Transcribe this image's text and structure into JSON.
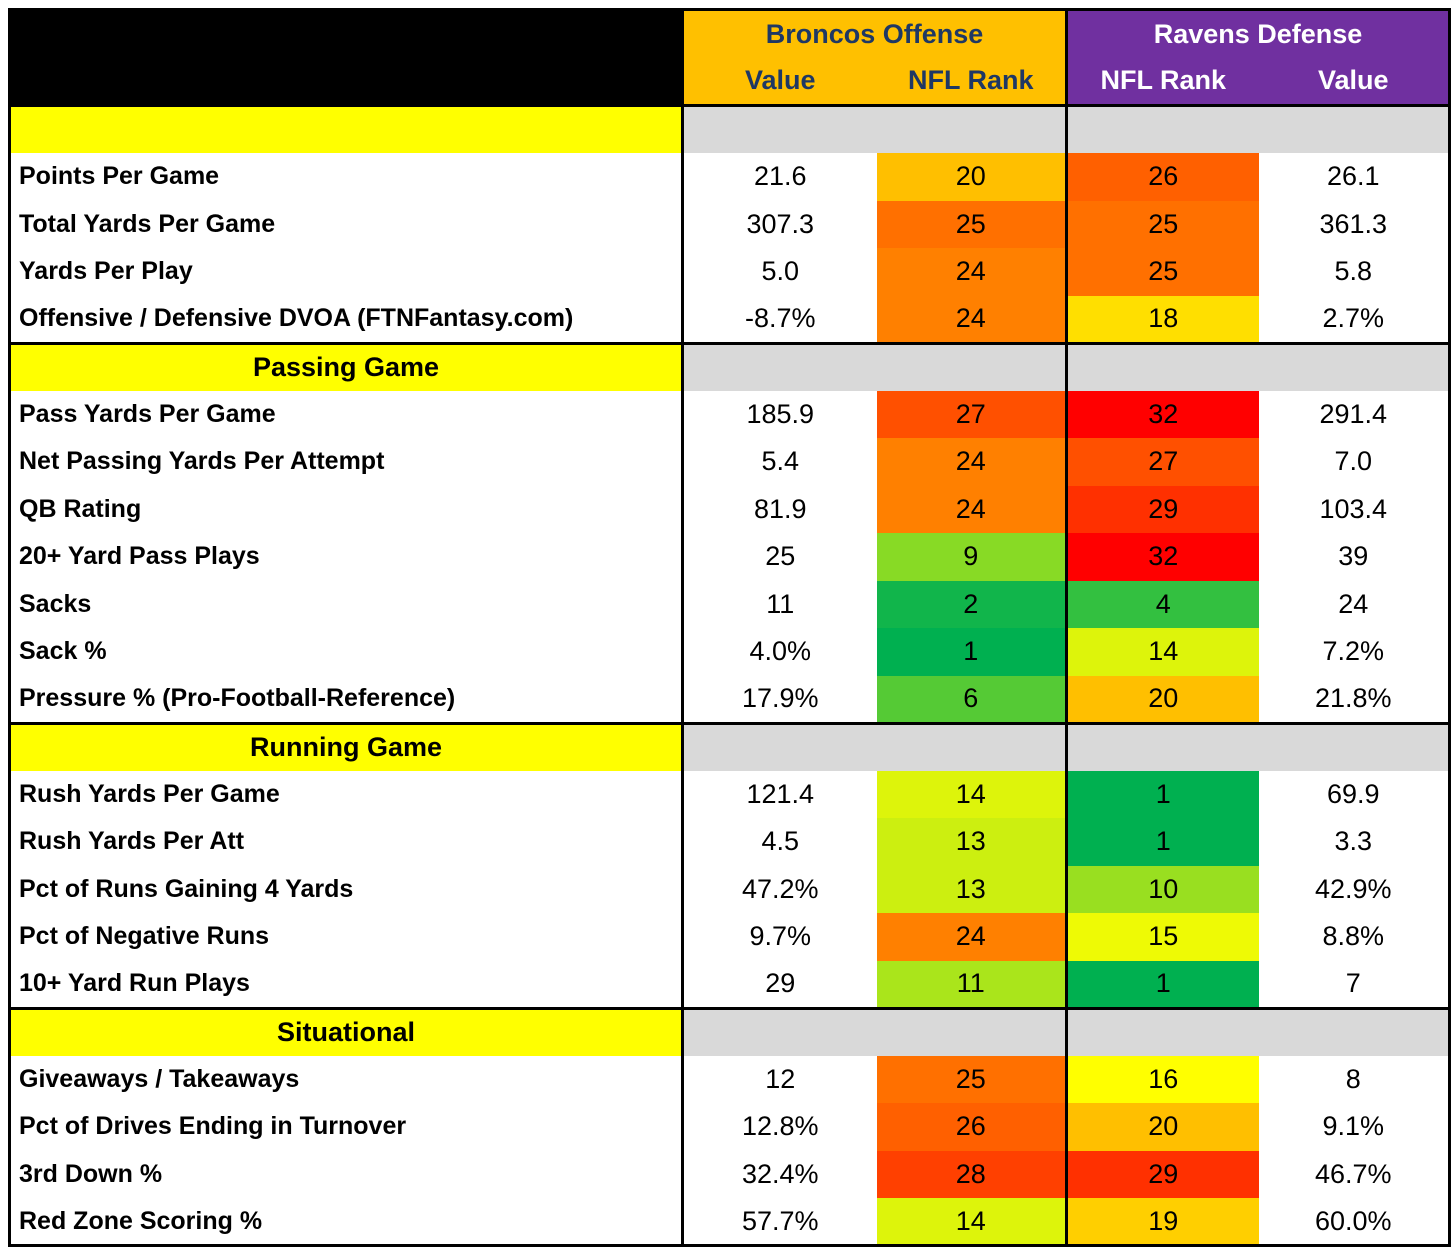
{
  "header": {
    "offense_team": "Broncos Offense",
    "defense_team": "Ravens Defense",
    "columns": [
      "Value",
      "NFL Rank",
      "NFL Rank",
      "Value"
    ]
  },
  "sections": [
    {
      "rows": [
        {
          "label": "Points Per Game",
          "offense_value": "21.6",
          "offense_rank": 20,
          "defense_rank": 26,
          "defense_value": "26.1"
        },
        {
          "label": "Total Yards Per Game",
          "offense_value": "307.3",
          "offense_rank": 25,
          "defense_rank": 25,
          "defense_value": "361.3"
        },
        {
          "label": "Yards Per Play",
          "offense_value": "5.0",
          "offense_rank": 24,
          "defense_rank": 25,
          "defense_value": "5.8"
        },
        {
          "label": "Offensive / Defensive DVOA (FTNFantasy.com)",
          "offense_value": "-8.7%",
          "offense_rank": 24,
          "defense_rank": 18,
          "defense_value": "2.7%"
        }
      ]
    },
    {
      "title": "Passing Game",
      "rows": [
        {
          "label": "Pass Yards Per Game",
          "offense_value": "185.9",
          "offense_rank": 27,
          "defense_rank": 32,
          "defense_value": "291.4"
        },
        {
          "label": "Net Passing Yards Per Attempt",
          "offense_value": "5.4",
          "offense_rank": 24,
          "defense_rank": 27,
          "defense_value": "7.0"
        },
        {
          "label": "QB Rating",
          "offense_value": "81.9",
          "offense_rank": 24,
          "defense_rank": 29,
          "defense_value": "103.4"
        },
        {
          "label": "20+ Yard Pass Plays",
          "offense_value": "25",
          "offense_rank": 9,
          "defense_rank": 32,
          "defense_value": "39"
        },
        {
          "label": "Sacks",
          "offense_value": "11",
          "offense_rank": 2,
          "defense_rank": 4,
          "defense_value": "24"
        },
        {
          "label": "Sack %",
          "offense_value": "4.0%",
          "offense_rank": 1,
          "defense_rank": 14,
          "defense_value": "7.2%"
        },
        {
          "label": "Pressure % (Pro-Football-Reference)",
          "offense_value": "17.9%",
          "offense_rank": 6,
          "defense_rank": 20,
          "defense_value": "21.8%"
        }
      ]
    },
    {
      "title": "Running Game",
      "rows": [
        {
          "label": "Rush Yards Per Game",
          "offense_value": "121.4",
          "offense_rank": 14,
          "defense_rank": 1,
          "defense_value": "69.9"
        },
        {
          "label": "Rush Yards Per Att",
          "offense_value": "4.5",
          "offense_rank": 13,
          "defense_rank": 1,
          "defense_value": "3.3"
        },
        {
          "label": "Pct of Runs Gaining 4 Yards",
          "offense_value": "47.2%",
          "offense_rank": 13,
          "defense_rank": 10,
          "defense_value": "42.9%"
        },
        {
          "label": "Pct of Negative Runs",
          "offense_value": "9.7%",
          "offense_rank": 24,
          "defense_rank": 15,
          "defense_value": "8.8%"
        },
        {
          "label": "10+ Yard Run Plays",
          "offense_value": "29",
          "offense_rank": 11,
          "defense_rank": 1,
          "defense_value": "7"
        }
      ]
    },
    {
      "title": "Situational",
      "rows": [
        {
          "label": "Giveaways / Takeaways",
          "offense_value": "12",
          "offense_rank": 25,
          "defense_rank": 16,
          "defense_value": "8"
        },
        {
          "label": "Pct of Drives Ending in Turnover",
          "offense_value": "12.8%",
          "offense_rank": 26,
          "defense_rank": 20,
          "defense_value": "9.1%"
        },
        {
          "label": "3rd Down %",
          "offense_value": "32.4%",
          "offense_rank": 28,
          "defense_rank": 29,
          "defense_value": "46.7%"
        },
        {
          "label": "Red Zone Scoring %",
          "offense_value": "57.7%",
          "offense_rank": 14,
          "defense_rank": 19,
          "defense_value": "60.0%"
        }
      ]
    }
  ]
}
